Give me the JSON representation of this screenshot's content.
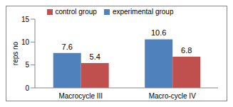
{
  "chart_data": {
    "type": "bar",
    "y_label": "reps no",
    "categories": [
      "Macrocycle III",
      "Macro-cycle IV"
    ],
    "series": [
      {
        "name": "experimental group",
        "color": "#4f81bd",
        "values": [
          7.6,
          10.6
        ]
      },
      {
        "name": "control group",
        "color": "#c0504d",
        "values": [
          5.4,
          6.8
        ]
      }
    ],
    "ylim": [
      0,
      15
    ],
    "yticks": [
      0,
      5,
      10,
      15
    ],
    "grid": false,
    "legend": "top",
    "data_labels": true
  }
}
